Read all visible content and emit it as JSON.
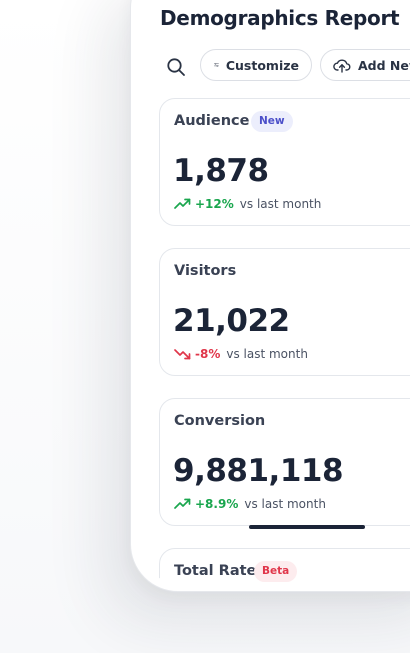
{
  "header": {
    "title": "Demographics Report"
  },
  "toolbar": {
    "search_icon": "search-icon",
    "customize_label": "Customize",
    "customize_icon": "sliders-icon",
    "add_new_label": "Add New",
    "add_new_icon": "cloud-upload-icon"
  },
  "cards": [
    {
      "label": "Audience",
      "badge": "New",
      "value": "1,878",
      "trend": "up",
      "change": "+12%",
      "suffix": "vs last month",
      "side_icon": "users-icon"
    },
    {
      "label": "Visitors",
      "value": "21,022",
      "trend": "down",
      "change": "-8%",
      "suffix": "vs last month",
      "side_icon": "eye-icon"
    },
    {
      "label": "Conversion",
      "value": "9,881,118",
      "trend": "up",
      "change": "+8.9%",
      "suffix": "vs last month",
      "side_icon": "dollar-icon"
    },
    {
      "label": "Total Rate",
      "badge": "Beta"
    }
  ],
  "colors": {
    "text_primary": "#1b2437",
    "positive": "#1aa64e",
    "negative": "#e0364a",
    "badge_new_bg": "#eceefc",
    "badge_new_text": "#4b4fc9",
    "badge_beta_bg": "#fdecee",
    "badge_beta_text": "#e0364a"
  }
}
